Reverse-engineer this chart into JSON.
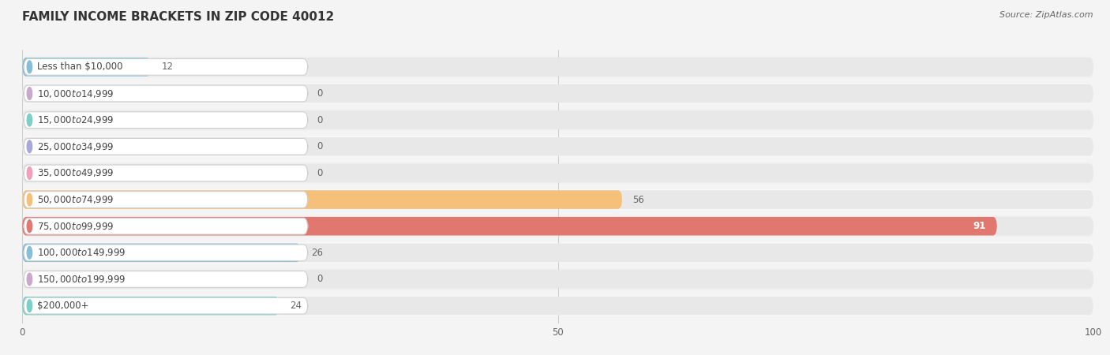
{
  "title": "FAMILY INCOME BRACKETS IN ZIP CODE 40012",
  "source": "Source: ZipAtlas.com",
  "categories": [
    "Less than $10,000",
    "$10,000 to $14,999",
    "$15,000 to $24,999",
    "$25,000 to $34,999",
    "$35,000 to $49,999",
    "$50,000 to $74,999",
    "$75,000 to $99,999",
    "$100,000 to $149,999",
    "$150,000 to $199,999",
    "$200,000+"
  ],
  "values": [
    12,
    0,
    0,
    0,
    0,
    56,
    91,
    26,
    0,
    24
  ],
  "bar_colors": [
    "#88bdd6",
    "#c9a8c9",
    "#7dcfc8",
    "#a8a8d8",
    "#f0a0b8",
    "#f5c07a",
    "#e07870",
    "#88bdd6",
    "#c9a8c9",
    "#7dcfc8"
  ],
  "xlim": [
    0,
    100
  ],
  "xticks": [
    0,
    50,
    100
  ],
  "background_color": "#f4f4f4",
  "bar_background_color": "#e8e8e8",
  "row_alt_color": "#efefef",
  "title_fontsize": 11,
  "label_fontsize": 8.5,
  "value_fontsize": 8.5,
  "source_fontsize": 8
}
